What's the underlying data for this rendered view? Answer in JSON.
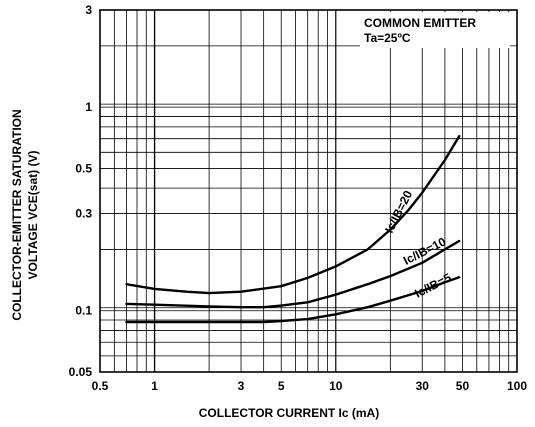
{
  "chart_data": {
    "type": "line",
    "x_scale": "log",
    "y_scale": "log",
    "xlim": [
      0.5,
      100
    ],
    "ylim": [
      0.05,
      3
    ],
    "grid": true,
    "xlabel": "COLLECTOR CURRENT Ic (mA)",
    "ylabel_line1": "COLLECTOR-EMITTER SATURATION",
    "ylabel_line2": "VOLTAGE VCE(sat) (V)",
    "annotation_line1": "COMMON EMITTER",
    "annotation_line2": "Ta=25ºC",
    "x_ticks": [
      {
        "value": 0.5,
        "label": "0.5"
      },
      {
        "value": 1,
        "label": "1"
      },
      {
        "value": 3,
        "label": "3"
      },
      {
        "value": 5,
        "label": "5"
      },
      {
        "value": 10,
        "label": "10"
      },
      {
        "value": 30,
        "label": "30"
      },
      {
        "value": 50,
        "label": "50"
      },
      {
        "value": 100,
        "label": "100"
      }
    ],
    "y_ticks": [
      {
        "value": 0.05,
        "label": "0.05"
      },
      {
        "value": 0.1,
        "label": "0.1"
      },
      {
        "value": 0.3,
        "label": "0.3"
      },
      {
        "value": 0.5,
        "label": "0.5"
      },
      {
        "value": 1,
        "label": "1"
      },
      {
        "value": 3,
        "label": "3"
      }
    ],
    "series": [
      {
        "name": "Ic/IB=20",
        "x": [
          0.7,
          1.0,
          1.5,
          2.0,
          3.0,
          5.0,
          7.0,
          10,
          15,
          20,
          25,
          30,
          40,
          48
        ],
        "y": [
          0.135,
          0.128,
          0.124,
          0.122,
          0.124,
          0.132,
          0.145,
          0.165,
          0.2,
          0.25,
          0.31,
          0.38,
          0.55,
          0.72
        ]
      },
      {
        "name": "Ic/IB=10",
        "x": [
          0.7,
          1.0,
          2.0,
          3.0,
          4.0,
          5.0,
          7.0,
          10,
          15,
          20,
          30,
          40,
          48
        ],
        "y": [
          0.108,
          0.107,
          0.105,
          0.104,
          0.104,
          0.106,
          0.11,
          0.12,
          0.135,
          0.148,
          0.172,
          0.2,
          0.22
        ]
      },
      {
        "name": "Ic/IB=5",
        "x": [
          0.7,
          1.0,
          2.0,
          3.0,
          4.0,
          5.0,
          7.0,
          10,
          15,
          20,
          30,
          40,
          48
        ],
        "y": [
          0.088,
          0.088,
          0.088,
          0.088,
          0.088,
          0.089,
          0.091,
          0.096,
          0.104,
          0.112,
          0.125,
          0.138,
          0.146
        ]
      }
    ],
    "curve_labels": [
      {
        "series": 0,
        "text": "Ic/IB=20"
      },
      {
        "series": 1,
        "text": "Ic/IB=10"
      },
      {
        "series": 2,
        "text": "Ic/IB=5"
      }
    ]
  }
}
